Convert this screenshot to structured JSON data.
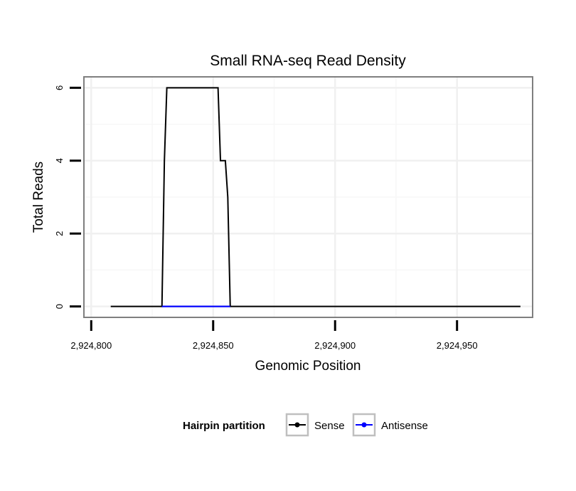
{
  "chart_data": {
    "type": "line",
    "title": "Small RNA-seq Read Density",
    "xlabel": "Genomic Position",
    "ylabel": "Total Reads",
    "xlim": [
      2924797,
      2924981
    ],
    "ylim": [
      -0.3,
      6.3
    ],
    "x_ticks": [
      2924800,
      2924850,
      2924900,
      2924950
    ],
    "x_tick_labels": [
      "2,924,800",
      "2,924,850",
      "2,924,900",
      "2,924,950"
    ],
    "y_ticks": [
      0,
      2,
      4,
      6
    ],
    "y_tick_labels": [
      "0",
      "2",
      "4",
      "6"
    ],
    "grid": true,
    "legend": {
      "title": "Hairpin partition",
      "position": "bottom",
      "entries": [
        "Sense",
        "Antisense"
      ]
    },
    "series": [
      {
        "name": "Sense",
        "color": "#000000",
        "x": [
          2924808,
          2924829,
          2924830,
          2924831,
          2924852,
          2924853,
          2924855,
          2924856,
          2924857,
          2924976
        ],
        "y": [
          0,
          0,
          4,
          6,
          6,
          4,
          4,
          3,
          0,
          0
        ]
      },
      {
        "name": "Antisense",
        "color": "#0000ff",
        "x": [
          2924829,
          2924857
        ],
        "y": [
          0,
          0
        ]
      }
    ]
  }
}
